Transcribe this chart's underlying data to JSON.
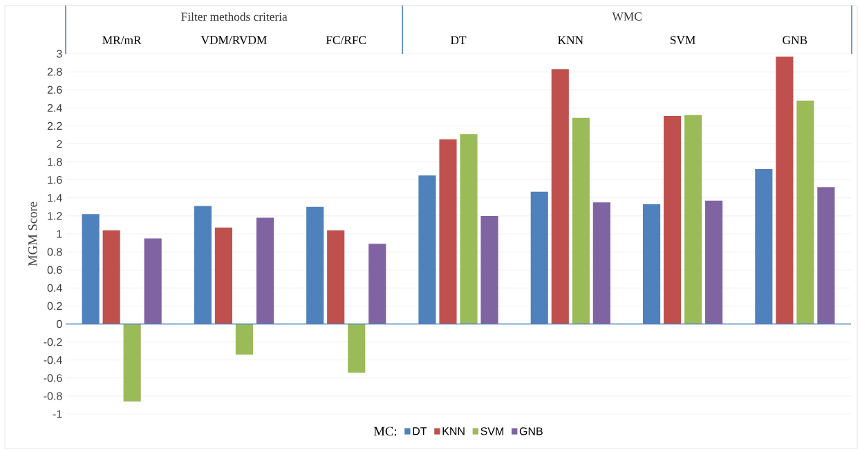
{
  "chart_data": {
    "type": "bar",
    "ylabel": "MGM Score",
    "legend_title": "MC:",
    "categories": [
      "MR/mR",
      "VDM/RVDM",
      "FC/RFC",
      "DT",
      "KNN",
      "SVM",
      "GNB"
    ],
    "annotations": [
      "Filter methods criteria",
      "WMC"
    ],
    "series": [
      {
        "name": "DT",
        "color": "#4f81bd",
        "values": [
          1.22,
          1.31,
          1.3,
          1.65,
          1.47,
          1.33,
          1.72
        ]
      },
      {
        "name": "KNN",
        "color": "#c0504d",
        "values": [
          1.04,
          1.07,
          1.04,
          2.05,
          2.83,
          2.31,
          2.97
        ]
      },
      {
        "name": "SVM",
        "color": "#9bbb59",
        "values": [
          -0.86,
          -0.34,
          -0.54,
          2.11,
          2.29,
          2.32,
          2.48
        ]
      },
      {
        "name": "GNB",
        "color": "#8064a2",
        "values": [
          0.95,
          1.18,
          0.89,
          1.2,
          1.35,
          1.37,
          1.52
        ]
      }
    ],
    "ylim": [
      -1,
      3
    ],
    "yticks": [
      -1,
      -0.8,
      -0.6,
      -0.4,
      -0.2,
      0,
      0.2,
      0.4,
      0.6,
      0.8,
      1,
      1.2,
      1.4,
      1.6,
      1.8,
      2,
      2.2,
      2.4,
      2.6,
      2.8,
      3
    ],
    "ref_lines": [
      {
        "axis": "y",
        "value": 0,
        "color": "#4f81bd"
      }
    ],
    "grid": "y",
    "legend": "bottom"
  }
}
